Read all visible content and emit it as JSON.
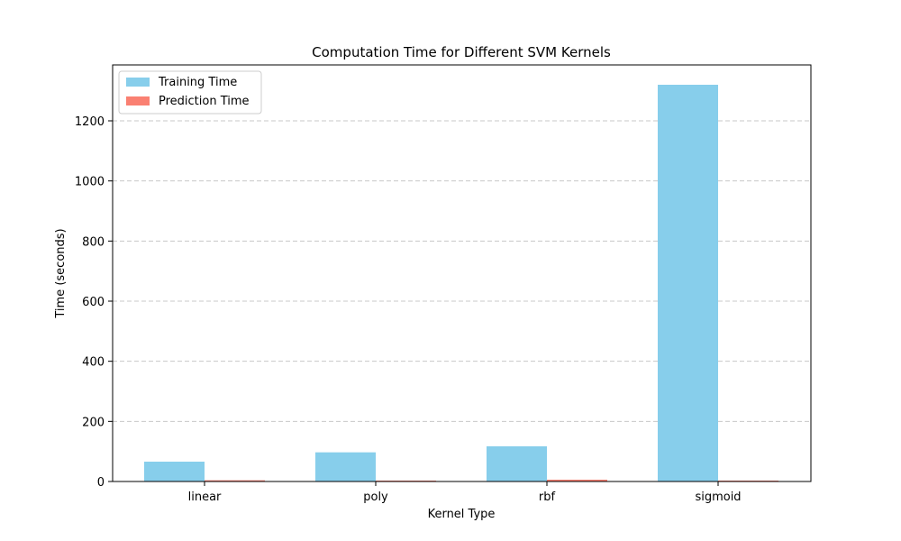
{
  "chart_data": {
    "type": "bar",
    "title": "Computation Time for Different SVM Kernels",
    "xlabel": "Kernel Type",
    "ylabel": "Time (seconds)",
    "categories": [
      "linear",
      "poly",
      "rbf",
      "sigmoid"
    ],
    "series": [
      {
        "name": "Training Time",
        "color": "#87ceeb",
        "values": [
          66,
          97,
          117,
          1320
        ]
      },
      {
        "name": "Prediction Time",
        "color": "#fa8072",
        "values": [
          4,
          3,
          6,
          3
        ]
      }
    ],
    "ylim": [
      0,
      1386
    ],
    "yticks": [
      0,
      200,
      400,
      600,
      800,
      1000,
      1200
    ],
    "grid": "y-dashed",
    "legend_position": "top-left"
  }
}
